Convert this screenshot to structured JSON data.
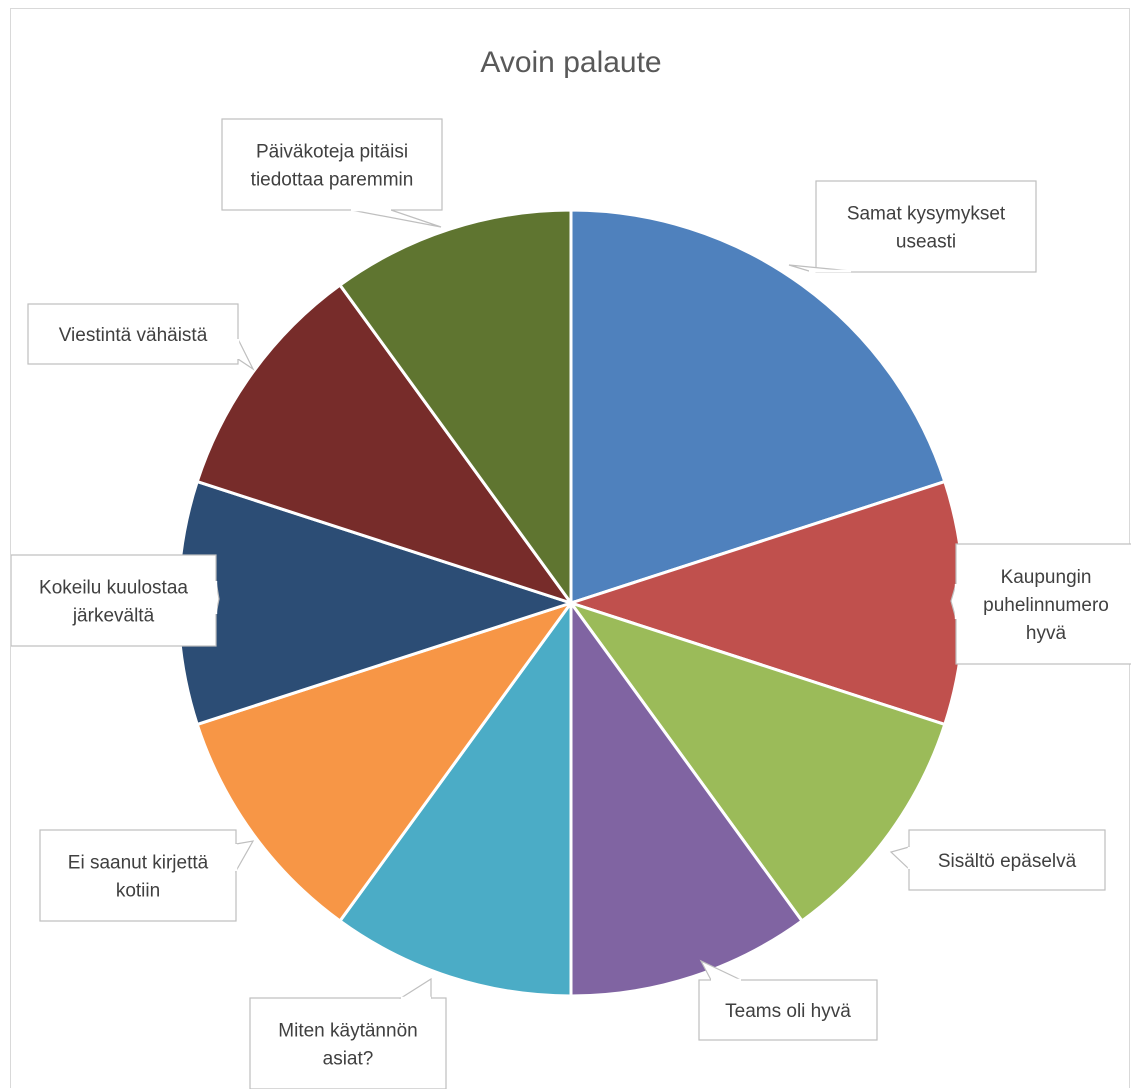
{
  "chart_data": {
    "type": "pie",
    "title": "Avoin palaute",
    "categories": [
      "Samat kysymykset useasti",
      "Kaupungin puhelinnumero hyvä",
      "Sisältö epäselvä",
      "Teams oli hyvä",
      "Miten käytännön asiat?",
      "Ei saanut kirjettä kotiin",
      "Kokeilu kuulostaa järkevältä",
      "Viestintä vähäistä",
      "Päiväkoteja pitäisi tiedottaa paremmin"
    ],
    "values": [
      2,
      1,
      1,
      1,
      1,
      1,
      1,
      1,
      1
    ],
    "colors": [
      "#4F81BD",
      "#C0504D",
      "#9BBB59",
      "#8064A2",
      "#4BACC6",
      "#F79646",
      "#2C4D75",
      "#772C2A",
      "#5F7530"
    ],
    "labels": [
      {
        "lines": [
          "Samat kysymykset",
          "useasti"
        ]
      },
      {
        "lines": [
          "Kaupungin",
          "puhelinnumero",
          "hyvä"
        ]
      },
      {
        "lines": [
          "Sisältö epäselvä"
        ]
      },
      {
        "lines": [
          "Teams oli hyvä"
        ]
      },
      {
        "lines": [
          "Miten käytännön",
          "asiat?"
        ]
      },
      {
        "lines": [
          "Ei saanut kirjettä",
          "kotiin"
        ]
      },
      {
        "lines": [
          "Kokeilu kuulostaa",
          "järkevältä"
        ]
      },
      {
        "lines": [
          "Viestintä vähäistä"
        ]
      },
      {
        "lines": [
          "Päiväkoteja pitäisi",
          "tiedottaa paremmin"
        ]
      }
    ],
    "legend": "none",
    "data_labels": "callouts"
  }
}
